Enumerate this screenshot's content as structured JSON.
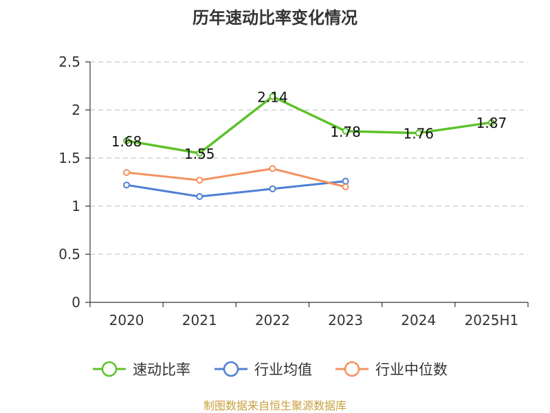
{
  "chart_data": {
    "type": "line",
    "title": "历年速动比率变化情况",
    "categories": [
      "2020",
      "2021",
      "2022",
      "2023",
      "2024",
      "2025H1"
    ],
    "ylim": [
      0,
      2.5
    ],
    "yticks": [
      "0",
      "0.5",
      "1",
      "1.5",
      "2",
      "2.5"
    ],
    "grid": true,
    "legend_position": "bottom",
    "series": [
      {
        "name": "速动比率",
        "color": "#5cc22a",
        "values": [
          1.68,
          1.55,
          2.14,
          1.78,
          1.76,
          1.87
        ],
        "labels": [
          "1.68",
          "1.55",
          "2.14",
          "1.78",
          "1.76",
          "1.87"
        ]
      },
      {
        "name": "行业均值",
        "color": "#4d7fd6",
        "values": [
          1.22,
          1.1,
          1.18,
          1.26,
          null,
          null
        ]
      },
      {
        "name": "行业中位数",
        "color": "#f5915c",
        "values": [
          1.35,
          1.27,
          1.39,
          1.2,
          null,
          null
        ]
      }
    ]
  },
  "source": "制图数据来自恒生聚源数据库"
}
